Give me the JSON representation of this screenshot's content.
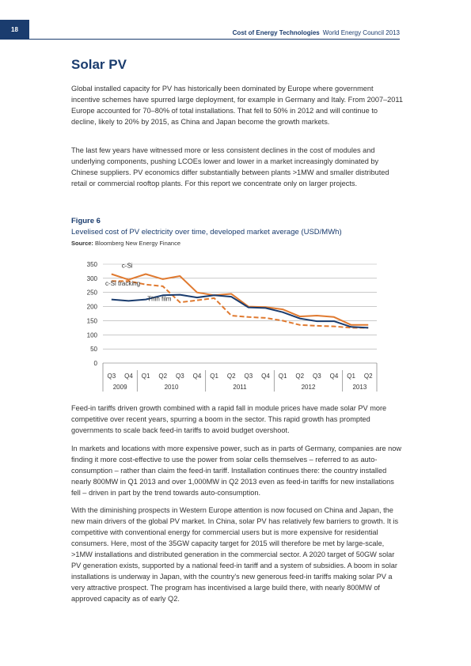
{
  "header": {
    "page_number": "18",
    "report_title": "Cost of Energy Technologies",
    "publisher": "World Energy Council 2013"
  },
  "section": {
    "title": "Solar PV",
    "para1": "Global installed capacity for PV has historically been dominated by Europe where government incentive schemes have spurred large deployment, for example in Germany and Italy. From 2007–2011 Europe accounted for 70–80% of total installations. That fell to 50% in 2012 and will continue to decline, likely to 20% by 2015, as China and Japan become the growth markets.",
    "para2": "The last few years have witnessed more or less consistent declines in the cost of modules and underlying components, pushing LCOEs lower and lower in a market increasingly dominated by Chinese suppliers. PV economics differ substantially between plants >1MW and smaller distributed retail or commercial rooftop plants. For this report we concentrate only on larger projects."
  },
  "figure": {
    "label": "Figure 6",
    "title": "Levelised cost of PV electricity over time, developed market average (USD/MWh)",
    "source_label": "Source:",
    "source": "Bloomberg New Energy Finance"
  },
  "chart_data": {
    "type": "line",
    "title": "",
    "xlabel": "",
    "ylabel": "",
    "ylim": [
      0,
      350
    ],
    "yticks": [
      0,
      50,
      100,
      150,
      200,
      250,
      300,
      350
    ],
    "grid": true,
    "quarters": [
      "Q3",
      "Q4",
      "Q1",
      "Q2",
      "Q3",
      "Q4",
      "Q1",
      "Q2",
      "Q3",
      "Q4",
      "Q1",
      "Q2",
      "Q3",
      "Q4",
      "Q1",
      "Q2"
    ],
    "years": [
      {
        "label": "2009",
        "span": 2
      },
      {
        "label": "2010",
        "span": 4
      },
      {
        "label": "2011",
        "span": 4
      },
      {
        "label": "2012",
        "span": 4
      },
      {
        "label": "2013",
        "span": 2
      }
    ],
    "series": [
      {
        "name": "c-Si",
        "color": "#e07a30",
        "dash": "solid",
        "values": [
          315,
          295,
          315,
          297,
          308,
          250,
          240,
          245,
          200,
          198,
          190,
          165,
          168,
          163,
          135,
          135
        ]
      },
      {
        "name": "c-Si tracking",
        "color": "#e07a30",
        "dash": "dashed",
        "values": [
          290,
          290,
          278,
          272,
          215,
          222,
          230,
          168,
          163,
          160,
          150,
          135,
          132,
          130,
          125,
          125
        ]
      },
      {
        "name": "Thin film",
        "color": "#1a3c6e",
        "dash": "solid",
        "values": [
          225,
          220,
          225,
          240,
          242,
          232,
          240,
          235,
          197,
          195,
          180,
          158,
          148,
          148,
          128,
          125
        ]
      }
    ]
  },
  "body": {
    "para3": "Feed-in tariffs driven growth combined with a rapid fall in module prices have made solar PV more competitive over recent years, spurring a boom in the sector. This rapid growth has prompted governments to scale back feed-in tariffs to avoid budget overshoot.",
    "para4": "In markets and locations with more expensive power, such as in parts of Germany, companies are now finding it more cost-effective to use the power from solar cells themselves – referred to as auto-consumption – rather than claim the feed-in tariff. Installation continues there: the country installed nearly 800MW in Q1 2013 and over 1,000MW in Q2 2013 even as feed-in tariffs for new installations fell – driven in part by the trend towards auto-consumption.",
    "para5": "With the diminishing prospects in Western Europe attention is now focused on China and Japan, the new main drivers of the global PV market. In China, solar PV has relatively few barriers to growth. It is competitive with conventional energy for commercial users but is more expensive for residential consumers. Here, most of the 35GW capacity target for 2015 will therefore be met by large-scale, >1MW installations and distributed generation in the commercial sector. A 2020 target of 50GW solar PV generation exists, supported by a national feed-in tariff and a system of subsidies. A boom in solar installations is underway in Japan, with the country's new generous feed-in tariffs making solar PV a very attractive prospect. The program has incentivised a large build there, with nearly 800MW of approved capacity as of early Q2."
  }
}
